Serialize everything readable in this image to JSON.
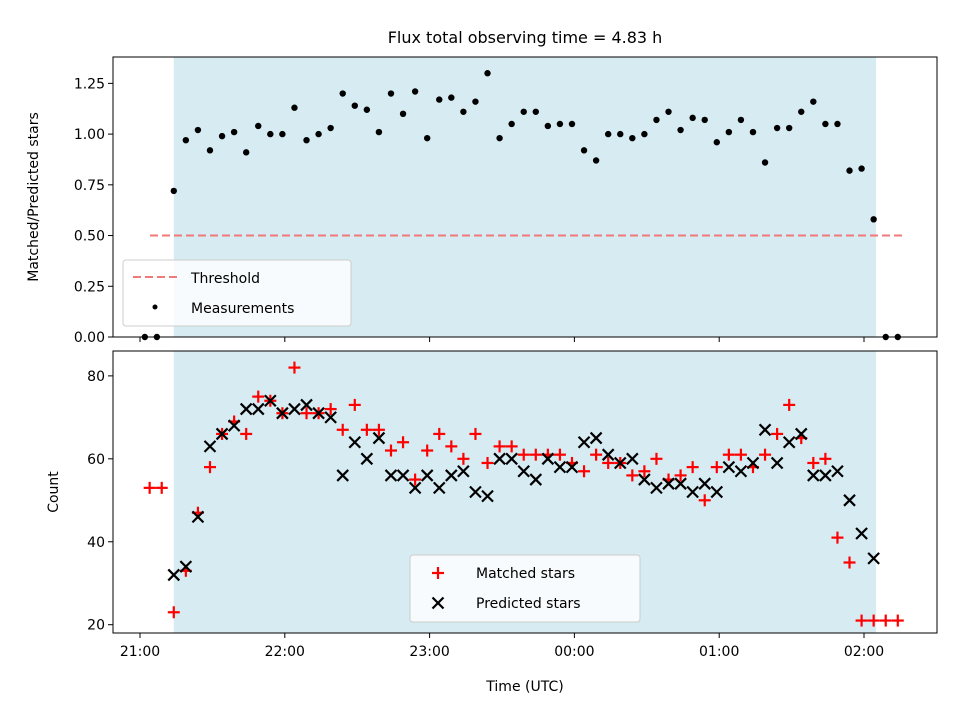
{
  "chart_data": [
    {
      "type": "scatter",
      "title": "Flux total observing time = 4.83 h",
      "xlabel": "",
      "ylabel": "Matched/Predicted stars",
      "ylim": [
        0,
        1.38
      ],
      "yticks": [
        "0.00",
        "0.25",
        "0.50",
        "0.75",
        "1.00",
        "1.25"
      ],
      "shaded_span": [
        "21:14",
        "02:05"
      ],
      "threshold": {
        "name": "Threshold",
        "value": 0.5,
        "color": "#f07a7a"
      },
      "series": [
        {
          "name": "Measurements",
          "color": "#000000",
          "x": [
            "21:02",
            "21:07",
            "21:14",
            "21:19",
            "21:24",
            "21:29",
            "21:34",
            "21:39",
            "21:44",
            "21:49",
            "21:54",
            "21:59",
            "22:04",
            "22:09",
            "22:14",
            "22:19",
            "22:24",
            "22:29",
            "22:34",
            "22:39",
            "22:44",
            "22:49",
            "22:54",
            "22:59",
            "23:04",
            "23:09",
            "23:14",
            "23:19",
            "23:24",
            "23:29",
            "23:34",
            "23:39",
            "23:44",
            "23:49",
            "23:54",
            "23:59",
            "00:04",
            "00:09",
            "00:14",
            "00:19",
            "00:24",
            "00:29",
            "00:34",
            "00:39",
            "00:44",
            "00:49",
            "00:54",
            "00:59",
            "01:04",
            "01:09",
            "01:14",
            "01:19",
            "01:24",
            "01:29",
            "01:34",
            "01:39",
            "01:44",
            "01:49",
            "01:54",
            "01:59",
            "02:04",
            "02:09",
            "02:14"
          ],
          "values": [
            0.0,
            0.0,
            0.72,
            0.97,
            1.02,
            0.92,
            0.99,
            1.01,
            0.91,
            1.04,
            1.0,
            1.0,
            1.13,
            0.97,
            1.0,
            1.03,
            1.2,
            1.14,
            1.12,
            1.01,
            1.2,
            1.1,
            1.21,
            0.98,
            1.17,
            1.18,
            1.11,
            1.16,
            1.3,
            0.98,
            1.05,
            1.11,
            1.11,
            1.04,
            1.05,
            1.05,
            0.92,
            0.87,
            1.0,
            1.0,
            0.98,
            1.0,
            1.07,
            1.11,
            1.02,
            1.08,
            1.07,
            0.96,
            1.01,
            1.07,
            1.01,
            0.86,
            1.03,
            1.03,
            1.11,
            1.16,
            1.05,
            1.05,
            0.82,
            0.83,
            0.58,
            0.0,
            0.0
          ]
        }
      ],
      "legend": "lower-left"
    },
    {
      "type": "scatter",
      "title": "",
      "xlabel": "Time (UTC)",
      "ylabel": "Count",
      "ylim": [
        18,
        86
      ],
      "yticks": [
        "20",
        "40",
        "60",
        "80"
      ],
      "xticks": [
        "21:00",
        "22:00",
        "23:00",
        "00:00",
        "01:00",
        "02:00"
      ],
      "shaded_span": [
        "21:14",
        "02:05"
      ],
      "series": [
        {
          "name": "Matched stars",
          "marker": "plus",
          "color": "#ff0000",
          "x": [
            "21:04",
            "21:09",
            "21:14",
            "21:19",
            "21:24",
            "21:29",
            "21:34",
            "21:39",
            "21:44",
            "21:49",
            "21:54",
            "21:59",
            "22:04",
            "22:09",
            "22:14",
            "22:19",
            "22:24",
            "22:29",
            "22:34",
            "22:39",
            "22:44",
            "22:49",
            "22:54",
            "22:59",
            "23:04",
            "23:09",
            "23:14",
            "23:19",
            "23:24",
            "23:29",
            "23:34",
            "23:39",
            "23:44",
            "23:49",
            "23:54",
            "23:59",
            "00:04",
            "00:09",
            "00:14",
            "00:19",
            "00:24",
            "00:29",
            "00:34",
            "00:39",
            "00:44",
            "00:49",
            "00:54",
            "00:59",
            "01:04",
            "01:09",
            "01:14",
            "01:19",
            "01:24",
            "01:29",
            "01:34",
            "01:39",
            "01:44",
            "01:49",
            "01:54",
            "01:59",
            "02:04",
            "02:09",
            "02:14"
          ],
          "values": [
            53,
            53,
            23,
            33,
            47,
            58,
            66,
            69,
            66,
            75,
            74,
            71,
            82,
            71,
            71,
            72,
            67,
            73,
            67,
            67,
            62,
            64,
            55,
            62,
            66,
            63,
            60,
            66,
            59,
            63,
            63,
            61,
            61,
            61,
            61,
            59,
            57,
            61,
            59,
            59,
            56,
            57,
            60,
            55,
            56,
            58,
            50,
            58,
            61,
            61,
            58,
            61,
            66,
            73,
            65,
            59,
            60,
            41,
            35,
            21,
            21,
            21,
            21
          ]
        },
        {
          "name": "Predicted stars",
          "marker": "x",
          "color": "#000000",
          "x": [
            "21:14",
            "21:19",
            "21:24",
            "21:29",
            "21:34",
            "21:39",
            "21:44",
            "21:49",
            "21:54",
            "21:59",
            "22:04",
            "22:09",
            "22:14",
            "22:19",
            "22:24",
            "22:29",
            "22:34",
            "22:39",
            "22:44",
            "22:49",
            "22:54",
            "22:59",
            "23:04",
            "23:09",
            "23:14",
            "23:19",
            "23:24",
            "23:29",
            "23:34",
            "23:39",
            "23:44",
            "23:49",
            "23:54",
            "23:59",
            "00:04",
            "00:09",
            "00:14",
            "00:19",
            "00:24",
            "00:29",
            "00:34",
            "00:39",
            "00:44",
            "00:49",
            "00:54",
            "00:59",
            "01:04",
            "01:09",
            "01:14",
            "01:19",
            "01:24",
            "01:29",
            "01:34",
            "01:39",
            "01:44",
            "01:49",
            "01:54",
            "01:59",
            "02:04"
          ],
          "values": [
            32,
            34,
            46,
            63,
            66,
            68,
            72,
            72,
            74,
            71,
            72,
            73,
            71,
            70,
            56,
            64,
            60,
            65,
            56,
            56,
            53,
            56,
            53,
            56,
            57,
            52,
            51,
            60,
            60,
            57,
            55,
            60,
            58,
            58,
            64,
            65,
            61,
            59,
            60,
            55,
            53,
            54,
            54,
            52,
            54,
            52,
            58,
            57,
            59,
            67,
            59,
            64,
            66,
            56,
            56,
            57,
            50,
            42,
            36
          ]
        }
      ],
      "legend": "lower-center"
    }
  ]
}
